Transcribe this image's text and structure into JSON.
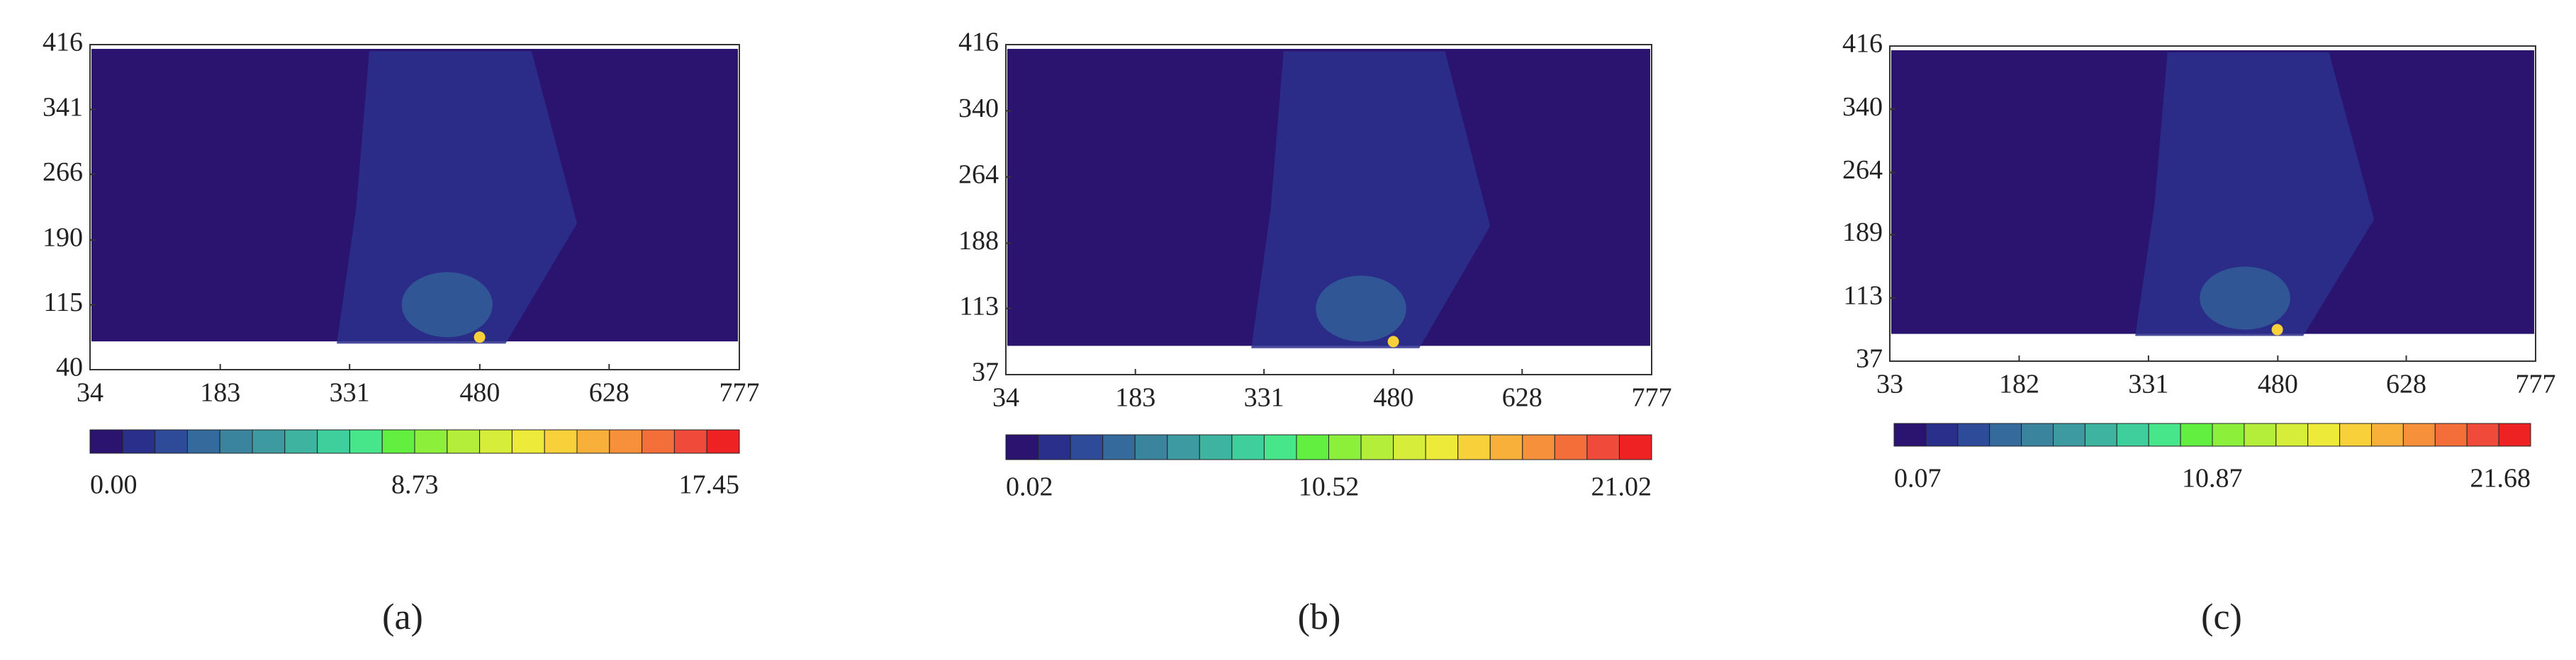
{
  "chart_data": [
    {
      "type": "heatmap",
      "label": "(a)",
      "xlim": [
        34,
        777
      ],
      "xticks": [
        34,
        183,
        331,
        480,
        628,
        777
      ],
      "ylim": [
        40,
        416
      ],
      "yticks": [
        40,
        115,
        190,
        266,
        341,
        416
      ],
      "colorbar": {
        "lim": [
          0,
          17.45
        ],
        "ticks": [
          {
            "value": 0,
            "label": "0.00"
          },
          8.73,
          17.45
        ],
        "colors": [
          "#2a1470",
          "#2b2f8c",
          "#2d4b99",
          "#356a9c",
          "#3a849e",
          "#3c9aa0",
          "#3db3a0",
          "#3fcf9c",
          "#48e68a",
          "#62ef3f",
          "#8cf03a",
          "#b4ee3a",
          "#d6ee3a",
          "#eeea3a",
          "#f8d03a",
          "#f8b03a",
          "#f7903a",
          "#f46e3a",
          "#f04a3a",
          "#ee2222"
        ]
      }
    },
    {
      "type": "heatmap",
      "label": "(b)",
      "xlim": [
        34,
        777
      ],
      "xticks": [
        34,
        183,
        331,
        480,
        628,
        777
      ],
      "ylim": [
        37,
        416
      ],
      "yticks": [
        37,
        113,
        188,
        264,
        340,
        416
      ],
      "colorbar": {
        "lim": [
          0.02,
          21.02
        ],
        "ticks": [
          0.02,
          10.52,
          21.02
        ],
        "colors": [
          "#2a1470",
          "#2b2f8c",
          "#2d4b99",
          "#356a9c",
          "#3a849e",
          "#3c9aa0",
          "#3db3a0",
          "#3fcf9c",
          "#48e68a",
          "#62ef3f",
          "#8cf03a",
          "#b4ee3a",
          "#d6ee3a",
          "#eeea3a",
          "#f8d03a",
          "#f8b03a",
          "#f7903a",
          "#f46e3a",
          "#f04a3a",
          "#ee2222"
        ]
      }
    },
    {
      "type": "heatmap",
      "label": "(c)",
      "xlim": [
        33,
        777
      ],
      "xticks": [
        33,
        182,
        331,
        480,
        628,
        777
      ],
      "ylim": [
        37,
        416
      ],
      "yticks": [
        37,
        113,
        189,
        264,
        340,
        416
      ],
      "colorbar": {
        "lim": [
          0.07,
          21.68
        ],
        "ticks": [
          0.07,
          10.87,
          21.68
        ],
        "colors": [
          "#2a1470",
          "#2b2f8c",
          "#2d4b99",
          "#356a9c",
          "#3a849e",
          "#3c9aa0",
          "#3db3a0",
          "#3fcf9c",
          "#48e68a",
          "#62ef3f",
          "#8cf03a",
          "#b4ee3a",
          "#d6ee3a",
          "#eeea3a",
          "#f8d03a",
          "#f8b03a",
          "#f7903a",
          "#f46e3a",
          "#f04a3a",
          "#ee2222"
        ]
      }
    }
  ]
}
